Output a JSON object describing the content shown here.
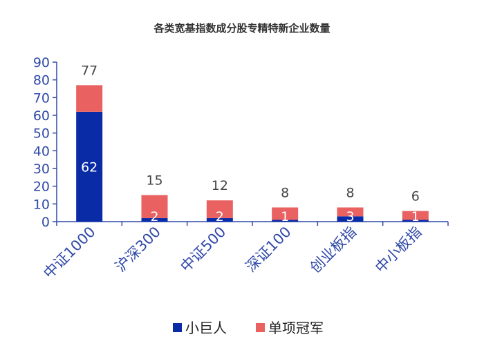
{
  "chart_data": {
    "type": "bar",
    "stacked": true,
    "title": "各类宽基指数成分股专精特新企业数量",
    "categories": [
      "中证1000",
      "沪深300",
      "中证500",
      "深证100",
      "创业板指",
      "中小板指"
    ],
    "series": [
      {
        "name": "小巨人",
        "values": [
          62,
          2,
          2,
          1,
          3,
          1
        ],
        "color": "#0A2BA6"
      },
      {
        "name": "单项冠军",
        "values": [
          15,
          13,
          10,
          7,
          5,
          5
        ],
        "color": "#E96161"
      }
    ],
    "totals": [
      77,
      15,
      12,
      8,
      8,
      6
    ],
    "y_ticks": [
      "0",
      "10",
      "20",
      "30",
      "40",
      "50",
      "60",
      "70",
      "80",
      "90"
    ],
    "ylim": [
      0,
      90
    ],
    "legend_position": "bottom",
    "axis_color": "#2F49A8"
  }
}
